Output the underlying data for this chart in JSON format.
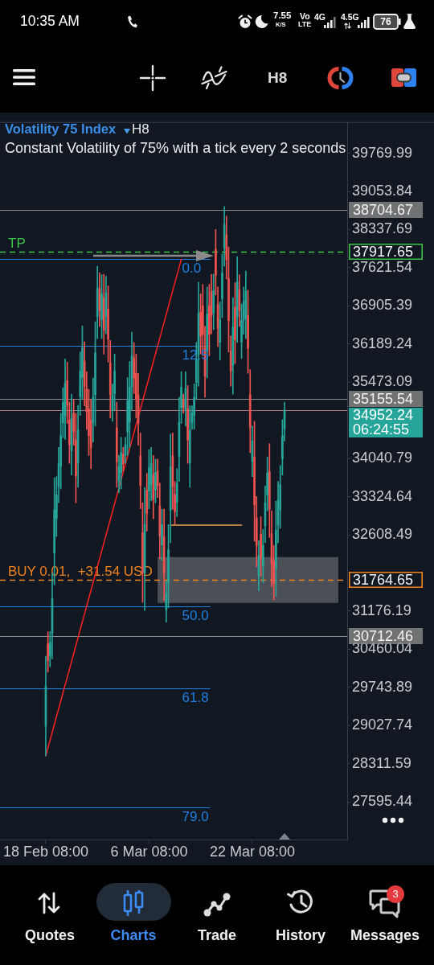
{
  "chart_data": {
    "type": "candlestick",
    "title": "Volatility 75 Index",
    "subtitle": "Constant Volatility of 75% with a tick every 2 seconds",
    "categories": [
      "18 Feb 08:00",
      null,
      null,
      null,
      null,
      null,
      null,
      null,
      null,
      null,
      null,
      null,
      null,
      null,
      null,
      null,
      null,
      null,
      null,
      null,
      null,
      null,
      null,
      null,
      null,
      null,
      null,
      null,
      null,
      null,
      null,
      null,
      null,
      null,
      null,
      null,
      null,
      null,
      null,
      null,
      null,
      null,
      null,
      null,
      null,
      null,
      null,
      null,
      "6 Mar 08:00",
      null,
      null,
      null,
      null,
      null,
      null,
      null,
      null,
      null,
      null,
      null,
      null,
      null,
      null,
      null,
      null,
      null,
      null,
      null,
      null,
      null,
      null,
      null,
      null,
      null,
      null,
      null,
      null,
      null,
      null,
      null,
      null,
      null,
      null,
      null,
      null,
      null,
      null,
      null,
      null,
      null,
      null,
      null,
      null,
      null,
      null,
      null,
      "22 Mar 08:00",
      null,
      null,
      null,
      null,
      null,
      null,
      null,
      null,
      null,
      null,
      null,
      null,
      null,
      null,
      null
    ],
    "ohlc": [
      [
        29020,
        30330,
        28460,
        29770
      ],
      [
        30560,
        30790,
        30030,
        30250
      ],
      [
        30330,
        30790,
        30130,
        30590
      ],
      [
        30760,
        31890,
        30280,
        31410
      ],
      [
        32270,
        33680,
        31670,
        33080
      ],
      [
        32920,
        33700,
        32580,
        33360
      ],
      [
        33520,
        34250,
        33210,
        33940
      ],
      [
        33900,
        34890,
        33470,
        34470
      ],
      [
        34710,
        35370,
        34430,
        35090
      ],
      [
        34850,
        35910,
        34400,
        35450
      ],
      [
        35500,
        35850,
        34700,
        35040
      ],
      [
        34760,
        35100,
        33950,
        34300
      ],
      [
        34180,
        35250,
        33730,
        34790
      ],
      [
        34890,
        35150,
        34290,
        34550
      ],
      [
        34390,
        34890,
        33210,
        33710
      ],
      [
        33960,
        35040,
        33500,
        34580
      ],
      [
        35200,
        36040,
        34850,
        35680
      ],
      [
        35560,
        36530,
        35150,
        36120
      ],
      [
        35870,
        36230,
        35030,
        35390
      ],
      [
        35350,
        35670,
        34590,
        34920
      ],
      [
        34970,
        35340,
        34100,
        34470
      ],
      [
        34760,
        35150,
        33850,
        34240
      ],
      [
        34710,
        35550,
        34350,
        35190
      ],
      [
        35240,
        36610,
        34650,
        36020
      ],
      [
        36700,
        37650,
        36290,
        37240
      ],
      [
        37230,
        37530,
        36520,
        36820
      ],
      [
        36650,
        37490,
        36290,
        37130
      ],
      [
        37050,
        37500,
        36000,
        36450
      ],
      [
        36710,
        37460,
        36380,
        37140
      ],
      [
        36850,
        37280,
        35850,
        36280
      ],
      [
        35830,
        36260,
        34800,
        35240
      ],
      [
        34950,
        35440,
        34740,
        35230
      ],
      [
        35260,
        36000,
        34950,
        35680
      ],
      [
        34620,
        35100,
        33500,
        33980
      ],
      [
        33610,
        34100,
        33400,
        33890
      ],
      [
        33770,
        34440,
        33470,
        34150
      ],
      [
        34120,
        34250,
        33800,
        33940
      ],
      [
        34100,
        34440,
        33950,
        34300
      ],
      [
        34540,
        35560,
        34100,
        35120
      ],
      [
        34730,
        35860,
        34250,
        35380
      ],
      [
        35390,
        36410,
        34950,
        35970
      ],
      [
        35930,
        36220,
        35260,
        35550
      ],
      [
        35640,
        36000,
        34800,
        35160
      ],
      [
        35230,
        35640,
        34290,
        34700
      ],
      [
        34090,
        34520,
        33100,
        33530
      ],
      [
        32650,
        33210,
        31340,
        31900
      ],
      [
        31890,
        33500,
        31190,
        32810
      ],
      [
        33440,
        33760,
        32680,
        33010
      ],
      [
        33430,
        34210,
        33100,
        33870
      ],
      [
        33550,
        34250,
        33250,
        33950
      ],
      [
        33740,
        34100,
        32910,
        33270
      ],
      [
        33450,
        34030,
        33210,
        33780
      ],
      [
        33810,
        34030,
        33310,
        33530
      ],
      [
        33150,
        33580,
        32160,
        32590
      ],
      [
        32420,
        33090,
        32130,
        32800
      ],
      [
        32570,
        33090,
        31370,
        31890
      ],
      [
        31200,
        31740,
        30970,
        31510
      ],
      [
        31710,
        32800,
        31240,
        32330
      ],
      [
        33070,
        34500,
        32460,
        33890
      ],
      [
        34090,
        34520,
        33090,
        33520
      ],
      [
        33370,
        33610,
        32800,
        33040
      ],
      [
        33220,
        33850,
        32950,
        33580
      ],
      [
        34080,
        35190,
        33610,
        34720
      ],
      [
        34990,
        35670,
        34700,
        35380
      ],
      [
        35140,
        35250,
        34890,
        35000
      ],
      [
        34960,
        35670,
        34650,
        35360
      ],
      [
        34970,
        35410,
        33950,
        34390
      ],
      [
        33960,
        35030,
        33500,
        34570
      ],
      [
        34720,
        35030,
        34590,
        34900
      ],
      [
        34850,
        35440,
        34590,
        35190
      ],
      [
        35470,
        36220,
        35150,
        35900
      ],
      [
        35990,
        37350,
        35400,
        36770
      ],
      [
        36790,
        37130,
        36000,
        36340
      ],
      [
        36910,
        37310,
        35970,
        36370
      ],
      [
        36120,
        36520,
        35190,
        35590
      ],
      [
        36060,
        37260,
        35550,
        36750
      ],
      [
        36910,
        37310,
        35970,
        36370
      ],
      [
        37170,
        37500,
        36380,
        36720
      ],
      [
        36770,
        37500,
        36460,
        37190
      ],
      [
        37970,
        38340,
        37110,
        37480
      ],
      [
        36930,
        37260,
        36140,
        36480
      ],
      [
        36220,
        36980,
        35890,
        36650
      ],
      [
        37040,
        37880,
        36680,
        37520
      ],
      [
        37990,
        38770,
        37650,
        38430
      ],
      [
        38240,
        38590,
        37410,
        37770
      ],
      [
        37420,
        38010,
        36040,
        36630
      ],
      [
        36060,
        36340,
        35400,
        35680
      ],
      [
        35790,
        37060,
        35250,
        36510
      ],
      [
        36880,
        37340,
        35820,
        36270
      ],
      [
        36700,
        37830,
        36220,
        37350
      ],
      [
        37200,
        37490,
        36520,
        36810
      ],
      [
        36230,
        36940,
        35920,
        36630
      ],
      [
        36640,
        37260,
        36370,
        36990
      ],
      [
        36670,
        37560,
        36290,
        37180
      ],
      [
        36730,
        37200,
        35640,
        36110
      ],
      [
        35240,
        35710,
        34150,
        34620
      ],
      [
        33980,
        34650,
        33700,
        34370
      ],
      [
        34070,
        34740,
        32490,
        33170
      ],
      [
        32930,
        33330,
        32010,
        32410
      ],
      [
        31850,
        32500,
        31560,
        32220
      ],
      [
        32620,
        32950,
        31830,
        32170
      ],
      [
        32010,
        32710,
        31710,
        32410
      ],
      [
        32780,
        33530,
        32460,
        33210
      ],
      [
        33360,
        34070,
        33060,
        33770
      ],
      [
        33800,
        34320,
        32560,
        33090
      ],
      [
        32630,
        33060,
        31640,
        32060
      ],
      [
        32110,
        32410,
        31390,
        31690
      ],
      [
        31980,
        33240,
        31450,
        32700
      ],
      [
        32800,
        33610,
        32460,
        33260
      ],
      [
        33080,
        33910,
        32730,
        33550
      ],
      [
        34040,
        34770,
        33730,
        34460
      ],
      [
        34600,
        35100,
        34370,
        34952.24
      ]
    ],
    "colors": [
      "#26a69a",
      "#ef5350",
      "#26a69a",
      "#26a69a",
      "#26a69a",
      "#26a69a",
      "#26a69a",
      "#26a69a",
      "#26a69a",
      "#26a69a",
      "#ef5350",
      "#ef5350",
      "#26a69a",
      "#ef5350",
      "#ef5350",
      "#26a69a",
      "#26a69a",
      "#26a69a",
      "#ef5350",
      "#ef5350",
      "#ef5350",
      "#ef5350",
      "#26a69a",
      "#26a69a",
      "#26a69a",
      "#ef5350",
      "#26a69a",
      "#ef5350",
      "#26a69a",
      "#ef5350",
      "#ef5350",
      "#26a69a",
      "#26a69a",
      "#ef5350",
      "#26a69a",
      "#26a69a",
      "#ef5350",
      "#26a69a",
      "#26a69a",
      "#26a69a",
      "#26a69a",
      "#ef5350",
      "#ef5350",
      "#ef5350",
      "#ef5350",
      "#ef5350",
      "#26a69a",
      "#ef5350",
      "#26a69a",
      "#26a69a",
      "#ef5350",
      "#26a69a",
      "#ef5350",
      "#ef5350",
      "#26a69a",
      "#ef5350",
      "#26a69a",
      "#26a69a",
      "#26a69a",
      "#ef5350",
      "#ef5350",
      "#26a69a",
      "#26a69a",
      "#26a69a",
      "#ef5350",
      "#26a69a",
      "#ef5350",
      "#26a69a",
      "#26a69a",
      "#26a69a",
      "#26a69a",
      "#26a69a",
      "#ef5350",
      "#ef5350",
      "#ef5350",
      "#26a69a",
      "#ef5350",
      "#ef5350",
      "#26a69a",
      "#ef5350",
      "#ef5350",
      "#26a69a",
      "#26a69a",
      "#26a69a",
      "#ef5350",
      "#ef5350",
      "#ef5350",
      "#26a69a",
      "#ef5350",
      "#26a69a",
      "#ef5350",
      "#26a69a",
      "#26a69a",
      "#26a69a",
      "#ef5350",
      "#ef5350",
      "#26a69a",
      "#ef5350",
      "#ef5350",
      "#26a69a",
      "#ef5350",
      "#26a69a",
      "#26a69a",
      "#26a69a",
      "#ef5350",
      "#ef5350",
      "#ef5350",
      "#26a69a",
      "#26a69a",
      "#26a69a",
      "#26a69a",
      "#26a69a"
    ],
    "series": [
      {
        "type": "line",
        "color": "#ff2020",
        "values": [
          28460,
          null,
          null,
          null,
          null,
          null,
          null,
          null,
          null,
          null,
          null,
          null,
          null,
          null,
          null,
          null,
          null,
          null,
          null,
          null,
          null,
          null,
          null,
          null,
          null,
          null,
          null,
          null,
          null,
          null,
          null,
          null,
          null,
          null,
          null,
          null,
          null,
          null,
          null,
          null,
          null,
          null,
          null,
          null,
          null,
          null,
          null,
          null,
          null,
          null,
          null,
          null,
          null,
          null,
          null,
          null,
          null,
          null,
          null,
          null,
          null,
          null,
          null,
          37780,
          null,
          null,
          null,
          null,
          null,
          null,
          null,
          null,
          null,
          null,
          null,
          null,
          null,
          null,
          null,
          null,
          null,
          null,
          null,
          null,
          null,
          null,
          null,
          null,
          null,
          null,
          null,
          null,
          null,
          null,
          null,
          null,
          null,
          null,
          null,
          null,
          null,
          null,
          null,
          null,
          null,
          null,
          null,
          null,
          null,
          null,
          null,
          null
        ]
      },
      {
        "type": "line",
        "color": "#e8a04c",
        "values": [
          null,
          null,
          null,
          null,
          null,
          null,
          null,
          null,
          null,
          null,
          null,
          null,
          null,
          null,
          null,
          null,
          null,
          null,
          null,
          null,
          null,
          null,
          null,
          null,
          null,
          null,
          null,
          null,
          null,
          null,
          null,
          null,
          null,
          null,
          null,
          null,
          null,
          null,
          null,
          null,
          null,
          null,
          null,
          null,
          null,
          null,
          null,
          null,
          null,
          null,
          null,
          null,
          null,
          null,
          null,
          null,
          null,
          null,
          32790,
          null,
          null,
          null,
          null,
          null,
          null,
          null,
          null,
          null,
          null,
          null,
          null,
          null,
          null,
          null,
          null,
          null,
          null,
          null,
          null,
          null,
          null,
          null,
          null,
          null,
          null,
          null,
          null,
          null,
          null,
          null,
          null,
          32790,
          null,
          null,
          null,
          null,
          null,
          null,
          null,
          null,
          null,
          null,
          null,
          null,
          null,
          null,
          null,
          null,
          null,
          null,
          null,
          null
        ]
      }
    ],
    "ylim": [
      26890,
      40340
    ],
    "yticks": [
      27595.44,
      28311.59,
      29027.74,
      29743.89,
      30460.04,
      31176.19,
      32608.49,
      33324.64,
      34040.79,
      35473.09,
      36189.24,
      36905.39,
      37621.54,
      38337.69,
      39053.84,
      39769.99
    ],
    "grid": false,
    "legend": false,
    "ref_lines": [
      {
        "axis": "y",
        "value": 37780,
        "color": "#1e80e0"
      },
      {
        "axis": "y",
        "value": 36150,
        "color": "#1e80e0"
      },
      {
        "axis": "y",
        "value": 31260,
        "color": "#1e80e0"
      },
      {
        "axis": "y",
        "value": 29730,
        "color": "#1e80e0"
      },
      {
        "axis": "y",
        "value": 27490,
        "color": "#1e80e0"
      },
      {
        "axis": "y",
        "value": 38704.67,
        "label": "38704.67",
        "color": "#8c8c8c"
      },
      {
        "axis": "y",
        "value": 37917.65,
        "label": "37917.65",
        "color": "#3cc24a",
        "line_style": "dashed"
      },
      {
        "axis": "y",
        "value": 35155.54,
        "label": "35155.54",
        "color": "#8c8c8c"
      },
      {
        "axis": "y",
        "value": 34952.24,
        "label": "34952.24",
        "color": "#b27078"
      },
      {
        "axis": "y",
        "value": 31764.65,
        "label": "31764.65",
        "color": "#f0841f",
        "line_style": "dashed"
      },
      {
        "axis": "y",
        "value": 30712.46,
        "label": "30712.46",
        "color": "#8c8c8c"
      }
    ],
    "bands": [
      {
        "axis": "y",
        "from": 31330,
        "to": 32190,
        "color": "#4c4f55"
      }
    ],
    "annotations": [
      {
        "text": "0.0",
        "y": 37780
      },
      {
        "text": "12.5",
        "y": 36150
      },
      {
        "text": "50.0",
        "y": 31260
      },
      {
        "text": "61.8",
        "y": 29730
      },
      {
        "text": "79.0",
        "y": 27490
      },
      {
        "text": "TP",
        "y": 37917.65
      },
      {
        "text": "BUY 0.01,  +31.54 USD",
        "y": 31764.65
      },
      "H8",
      "06:24:55",
      "10:35 AM",
      "7.55",
      "K/S",
      "Vo",
      "LTE",
      "4G",
      "4.5G",
      "76",
      "H8",
      "Quotes",
      "Charts",
      "Trade",
      "History",
      "Messages",
      "3"
    ]
  }
}
